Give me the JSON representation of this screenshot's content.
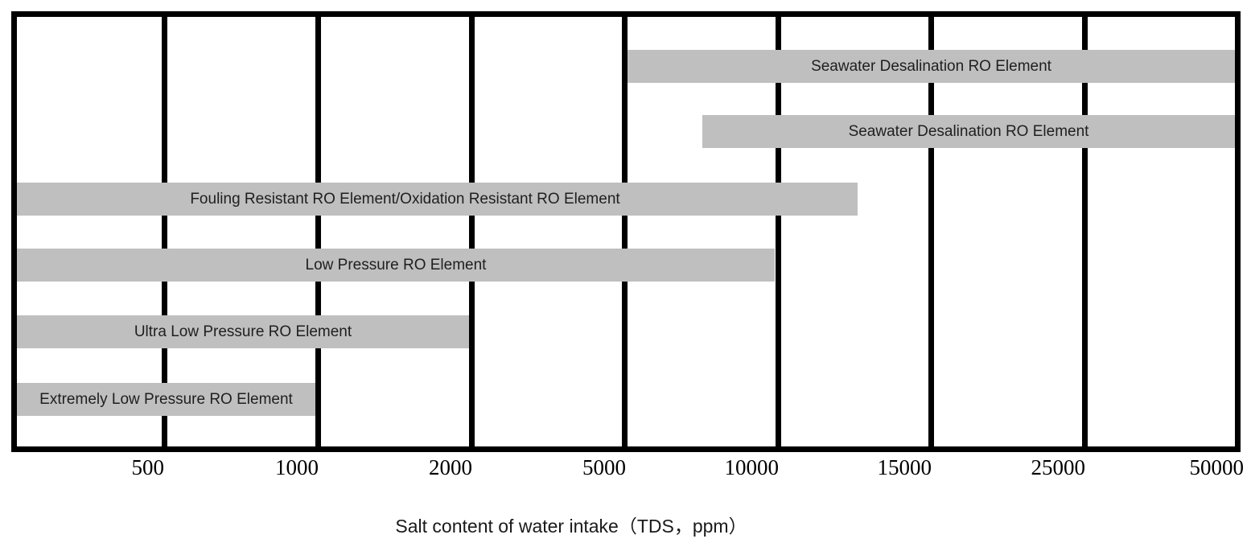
{
  "chart_data": {
    "type": "bar",
    "subtype": "horizontal-range-bars",
    "title": "",
    "xlabel": "Salt content of water intake（TDS，ppm）",
    "ylabel": "",
    "x_scale": "segmented (equal-width intervals between labeled ticks)",
    "x_ticks": [
      "500",
      "1000",
      "2000",
      "5000",
      "10000",
      "15000",
      "25000",
      "50000"
    ],
    "x_range_ppm": [
      0,
      50000
    ],
    "grid": "vertical thick black lines at every tick, bars drawn on top",
    "legend": "none",
    "bars": [
      {
        "label": "Seawater Desalination RO Element",
        "start_ppm": 5000,
        "end_ppm": 50000
      },
      {
        "label": "Seawater Desalination RO Element",
        "start_ppm": 7500,
        "end_ppm": 50000
      },
      {
        "label": "Fouling Resistant RO Element/Oxidation Resistant RO Element",
        "start_ppm": 0,
        "end_ppm": 12500
      },
      {
        "label": "Low Pressure RO Element",
        "start_ppm": 0,
        "end_ppm": 10000
      },
      {
        "label": "Ultra Low Pressure RO Element",
        "start_ppm": 0,
        "end_ppm": 2000
      },
      {
        "label": "Extremely Low Pressure RO Element",
        "start_ppm": 0,
        "end_ppm": 1000
      }
    ],
    "colors": {
      "bar_fill": "#bfbfbf",
      "bar_text": "#1f1f1f",
      "frame_and_grid": "#000000",
      "background": "#ffffff"
    }
  }
}
